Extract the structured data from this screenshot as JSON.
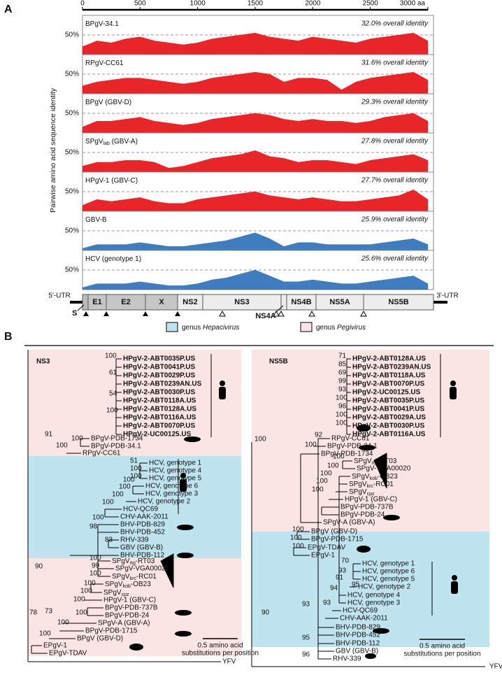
{
  "chart_data": {
    "type": "area",
    "panel_label": "A",
    "ylabel": "Pairwise amino acid sequence identity",
    "xlim": [
      0,
      3000
    ],
    "xticks": [
      0,
      500,
      1000,
      1500,
      2000,
      2500,
      {
        "value": 3000,
        "label": "3000 aa"
      }
    ],
    "ylim": [
      0,
      100
    ],
    "yticks": [
      {
        "value": 50,
        "label": "50%"
      }
    ],
    "grid": true,
    "x": [
      0,
      125,
      250,
      375,
      500,
      625,
      750,
      875,
      1000,
      1125,
      1250,
      1375,
      1500,
      1625,
      1750,
      1875,
      2000,
      2125,
      2250,
      2375,
      2500,
      2625,
      2750,
      2875,
      3000
    ],
    "series": [
      {
        "name": [
          "BPgV-34.1"
        ],
        "annotation": "32.0% overall identity",
        "color": "#e8262a",
        "values": [
          20,
          35,
          30,
          40,
          45,
          35,
          30,
          25,
          30,
          40,
          45,
          50,
          55,
          45,
          40,
          35,
          45,
          40,
          35,
          30,
          40,
          45,
          50,
          55,
          35
        ]
      },
      {
        "name": [
          "RPgV-CC61"
        ],
        "annotation": "31.6% overall identity",
        "color": "#e8262a",
        "values": [
          20,
          30,
          35,
          40,
          40,
          35,
          30,
          25,
          30,
          40,
          45,
          50,
          55,
          50,
          30,
          40,
          40,
          35,
          10,
          30,
          40,
          45,
          50,
          55,
          35
        ]
      },
      {
        "name": [
          "BPgV (GBV-D)"
        ],
        "annotation": "29.3% overall identity",
        "color": "#e8262a",
        "values": [
          15,
          30,
          30,
          35,
          40,
          30,
          25,
          20,
          25,
          35,
          40,
          45,
          50,
          45,
          35,
          30,
          35,
          30,
          30,
          25,
          30,
          40,
          45,
          50,
          30
        ]
      },
      {
        "name": [
          "SPgV",
          {
            "sub": "lab"
          },
          " (GBV-A)"
        ],
        "annotation": "27.8% overall identity",
        "color": "#e8262a",
        "values": [
          15,
          25,
          25,
          30,
          30,
          25,
          10,
          15,
          25,
          35,
          40,
          45,
          55,
          40,
          35,
          25,
          30,
          30,
          25,
          20,
          30,
          35,
          40,
          45,
          30
        ]
      },
      {
        "name": [
          "HPgV-1 (GBV-C)"
        ],
        "annotation": "27.7% overall identity",
        "color": "#e8262a",
        "values": [
          15,
          30,
          25,
          30,
          35,
          25,
          20,
          20,
          30,
          35,
          40,
          45,
          50,
          40,
          35,
          30,
          35,
          30,
          25,
          25,
          30,
          35,
          40,
          55,
          30
        ]
      },
      {
        "name": [
          "GBV-B"
        ],
        "annotation": "25.9% overall identity",
        "color": "#3f7cc0",
        "values": [
          5,
          15,
          15,
          15,
          20,
          15,
          10,
          10,
          15,
          20,
          25,
          35,
          45,
          30,
          10,
          20,
          20,
          15,
          15,
          15,
          15,
          20,
          25,
          30,
          15
        ]
      },
      {
        "name": [
          "HCV (genotype 1)"
        ],
        "annotation": "25.6% overall identity",
        "color": "#3f7cc0",
        "values": [
          5,
          15,
          15,
          15,
          20,
          15,
          10,
          10,
          15,
          25,
          30,
          40,
          50,
          35,
          20,
          20,
          25,
          20,
          15,
          15,
          20,
          25,
          30,
          35,
          15
        ]
      }
    ]
  },
  "genome_map": {
    "utr5": "5'-UTR",
    "utr3": "3'-UTR",
    "s": "S",
    "e1": "E1",
    "e2": "E2",
    "x": "X",
    "ns2": "NS2",
    "ns3": "NS3",
    "ns4a": "NS4A",
    "ns4b": "NS4B",
    "ns5a": "NS5A",
    "ns5b": "NS5B"
  },
  "panel_b": {
    "panel_label": "B",
    "legend": [
      {
        "prefix": "genus ",
        "name": "Hepacivirus"
      },
      {
        "prefix": "genus ",
        "name": "Pegivirus"
      }
    ],
    "trees": [
      {
        "title": "NS3",
        "leaves": [
          "HPgV-2-ABT0035P.US",
          "HPgV-2-ABT0041P.US",
          "HPgV-2-ABT0029P.US",
          "HPgV-2-ABT0239AN.US",
          "HPgV-2-ABT0030P.US",
          "HPgV-2-ABT0118A.US",
          "HPgV-2-ABT0128A.US",
          "HPgV-2-ABT0116A.US",
          "HPgV-2-ABT0070P.US",
          "HPgV-2-UC00125.US",
          "BPgV-PDB-1734",
          "BPgV-PDB-34.1",
          "RPgV-CC61",
          "HCV, genotype 1",
          "HCV, genotype 4",
          "HCV, genotype 5",
          "HCV, genotype 6",
          "HCV, genotype 3",
          "HCV, genotype 2",
          "HCV-QC69",
          "CHV-AAK-2011",
          "BHV-PDB-829",
          "BHV-PDB-452",
          "RHV-339",
          "GBV (GBV-B)",
          "BHV-PDB-112",
          [
            "SPgV",
            {
              "sub": "rtg"
            },
            "-RT03"
          ],
          "SPgV-VGA00020",
          [
            "SPgV",
            {
              "sub": "krc"
            },
            "-RC01"
          ],
          [
            "SPgV",
            {
              "sub": "kob"
            },
            "-OB23"
          ],
          [
            "SPgV",
            {
              "sub": "cpz"
            }
          ],
          "HPgV-1 (GBV-C)",
          "BPgV-PDB-737B",
          "BPgV-PDB-24",
          "SPgV-A (GBV-A)",
          "BPgV-PDB-1715",
          "BPgV (GBV-D)",
          "EPgV-1",
          "EPgV-TDAV"
        ],
        "bootstrap": [
          100,
          61,
          54,
          100,
          100,
          100,
          91,
          51,
          100,
          100,
          100,
          100,
          100,
          100,
          100,
          98,
          83,
          100,
          99,
          100,
          100,
          100,
          100,
          100,
          73,
          100,
          100,
          90,
          78
        ],
        "scale_bar": [
          "0.5 amino acid",
          "substitutions per position"
        ],
        "outgroup": "YFV"
      },
      {
        "title": "NS5B",
        "leaves": [
          "HPgV-2-ABT0128A.US",
          "HPgV-2-ABT0239AN.US",
          "HPgV-2-ABT0118A.US",
          "HPgV-2-ABT0070P.US",
          "HPgV-2-UC00125.US",
          "HPgV-2-ABT0035P.US",
          "HPgV-2-ABT0041P.US",
          "HPgV-2-ABT0029A.US",
          "HPgV-2-ABT0030P.US",
          "HPgV-2-ABT0116A.US",
          "RPgV-CC61",
          "BPgV-PDB-34.1",
          "BPgV-PDB-1734",
          [
            "SPgV",
            {
              "sub": "rtg"
            },
            "-RT03"
          ],
          "SPgV-VGA00020",
          [
            "SPgV",
            {
              "sub": "kob"
            },
            "-OB23"
          ],
          [
            "SPgV",
            {
              "sub": "krc"
            },
            "-RC01"
          ],
          [
            "SPgV",
            {
              "sub": "cpz"
            }
          ],
          "HPgV-1 (GBV-C)",
          "BPgV-PDB-737B",
          "BPgV-PDB-24",
          "SPgV-A (GBV-A)",
          "BPgV (GBV-D)",
          "BPgV-PDB-1715",
          "EPgV-TDAV",
          "EPgV-1",
          "HCV, genotype 1",
          "HCV, genotype 6",
          "HCV, genotype 5",
          "HCV, genotype 2",
          "HCV, genotype 4",
          "HCV, genotype 3",
          "HCV-QC69",
          "CHV-AAK-2011",
          "BHV-PDB-829",
          "BHV-PDB-452",
          "BHV-PDB-112",
          "GBV (GBV-B)",
          "RHV-339"
        ],
        "bootstrap": [
          71,
          85,
          69,
          99,
          93,
          100,
          96,
          100,
          100,
          92,
          100,
          100,
          100,
          100,
          100,
          100,
          100,
          100,
          100,
          100,
          70,
          93,
          91,
          95,
          94,
          93,
          93,
          90,
          95,
          96
        ],
        "scale_bar": [
          "0.5 amino acid",
          "substitutions per position"
        ],
        "outgroup": "YFV"
      }
    ]
  }
}
